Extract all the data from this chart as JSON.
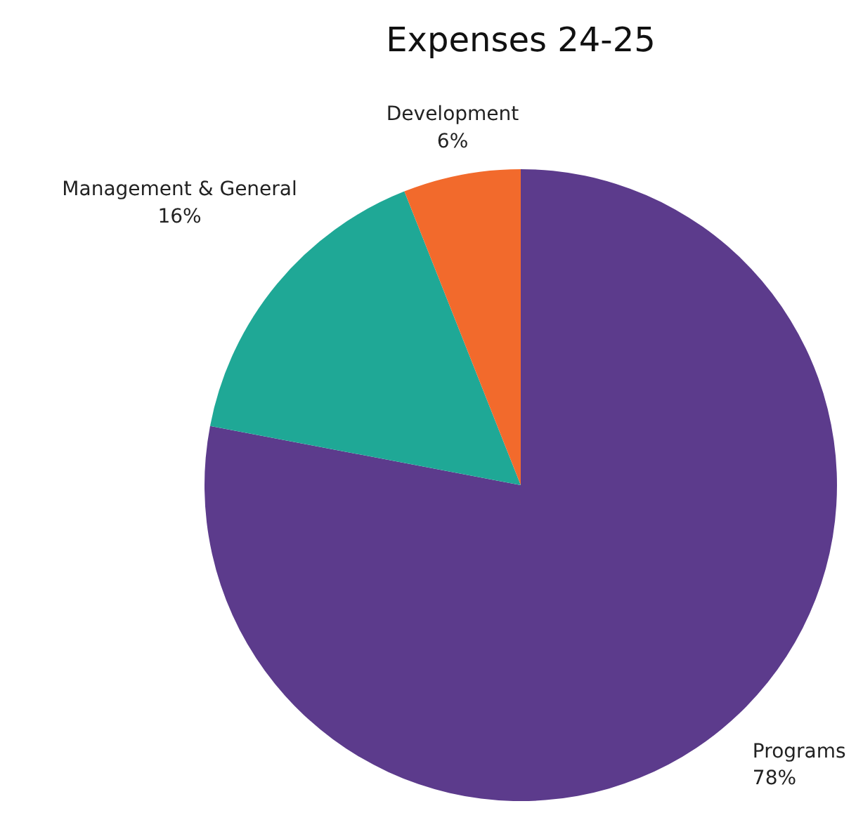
{
  "chart_data": {
    "type": "pie",
    "title": "Expenses 24-25",
    "categories": [
      "Programs",
      "Management & General",
      "Development"
    ],
    "values": [
      78,
      16,
      6
    ],
    "colors": [
      "#5c3b8c",
      "#1fa896",
      "#f26a2c"
    ],
    "value_labels": [
      "78%",
      "16%",
      "6%"
    ]
  }
}
